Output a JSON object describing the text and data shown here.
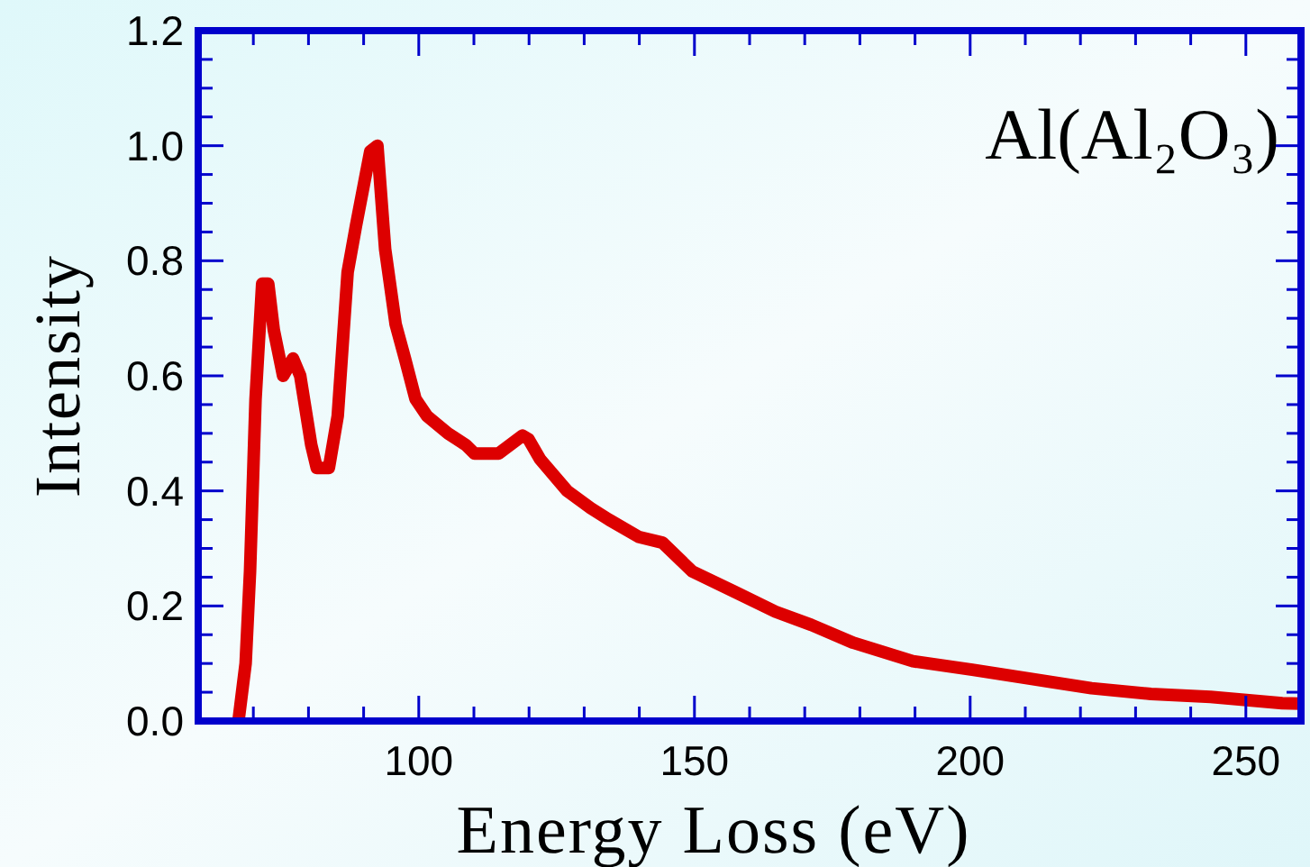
{
  "chart_data": {
    "type": "line",
    "xlabel": "Energy Loss (eV)",
    "ylabel": "Intensity",
    "annotations": [
      "Al(Al₂O₃)"
    ],
    "xlim": [
      60,
      260
    ],
    "ylim": [
      0,
      1.2
    ],
    "xticks": [
      {
        "value": 70,
        "label": null
      },
      {
        "value": 80,
        "label": null
      },
      {
        "value": 90,
        "label": null
      },
      100,
      {
        "value": 110,
        "label": null
      },
      {
        "value": 120,
        "label": null
      },
      {
        "value": 130,
        "label": null
      },
      {
        "value": 140,
        "label": null
      },
      150,
      {
        "value": 160,
        "label": null
      },
      {
        "value": 170,
        "label": null
      },
      {
        "value": 180,
        "label": null
      },
      {
        "value": 190,
        "label": null
      },
      200,
      {
        "value": 210,
        "label": null
      },
      {
        "value": 220,
        "label": null
      },
      {
        "value": 230,
        "label": null
      },
      {
        "value": 240,
        "label": null
      },
      250
    ],
    "yticks": [
      {
        "value": 0,
        "label": "0.0"
      },
      {
        "value": 0.05,
        "label": null
      },
      {
        "value": 0.1,
        "label": null
      },
      {
        "value": 0.15,
        "label": null
      },
      {
        "value": 0.2,
        "label": "0.2"
      },
      {
        "value": 0.25,
        "label": null
      },
      {
        "value": 0.3,
        "label": null
      },
      {
        "value": 0.35,
        "label": null
      },
      {
        "value": 0.4,
        "label": "0.4"
      },
      {
        "value": 0.45,
        "label": null
      },
      {
        "value": 0.5,
        "label": null
      },
      {
        "value": 0.55,
        "label": null
      },
      {
        "value": 0.6,
        "label": "0.6"
      },
      {
        "value": 0.65,
        "label": null
      },
      {
        "value": 0.7,
        "label": null
      },
      {
        "value": 0.75,
        "label": null
      },
      {
        "value": 0.8,
        "label": "0.8"
      },
      {
        "value": 0.85,
        "label": null
      },
      {
        "value": 0.9,
        "label": null
      },
      {
        "value": 0.95,
        "label": null
      },
      {
        "value": 1.0,
        "label": "1.0"
      },
      {
        "value": 1.05,
        "label": null
      },
      {
        "value": 1.1,
        "label": null
      },
      {
        "value": 1.15,
        "label": null
      },
      {
        "value": 1.2,
        "label": "1.2"
      }
    ],
    "grid": false,
    "marker": "none",
    "line_style": "solid",
    "series": [
      {
        "color": "#dd0000",
        "x": [
          67.3,
          68.6,
          69.4,
          70.4,
          71.6,
          72.7,
          73.7,
          75.4,
          77.2,
          78.5,
          80.5,
          81.5,
          83.7,
          85.3,
          87.1,
          88.6,
          91.2,
          92.5,
          93.9,
          95.8,
          97.5,
          99.4,
          101.5,
          105.3,
          108.5,
          110.1,
          114.5,
          118.8,
          119.9,
          122,
          126.9,
          131.2,
          134.5,
          139.9,
          144.2,
          149.6,
          157.2,
          164.7,
          171.2,
          178.8,
          189.6,
          200.4,
          211.2,
          222,
          232.8,
          243.6,
          256.6,
          260
        ],
        "values": [
          0,
          0.1,
          0.26,
          0.56,
          0.76,
          0.76,
          0.68,
          0.6,
          0.63,
          0.6,
          0.48,
          0.44,
          0.44,
          0.53,
          0.78,
          0.86,
          0.99,
          1.0,
          0.82,
          0.69,
          0.63,
          0.56,
          0.53,
          0.5,
          0.48,
          0.465,
          0.465,
          0.496,
          0.49,
          0.455,
          0.4,
          0.37,
          0.35,
          0.32,
          0.31,
          0.26,
          0.225,
          0.19,
          0.167,
          0.136,
          0.104,
          0.089,
          0.073,
          0.057,
          0.047,
          0.042,
          0.031,
          0.03
        ]
      }
    ]
  }
}
